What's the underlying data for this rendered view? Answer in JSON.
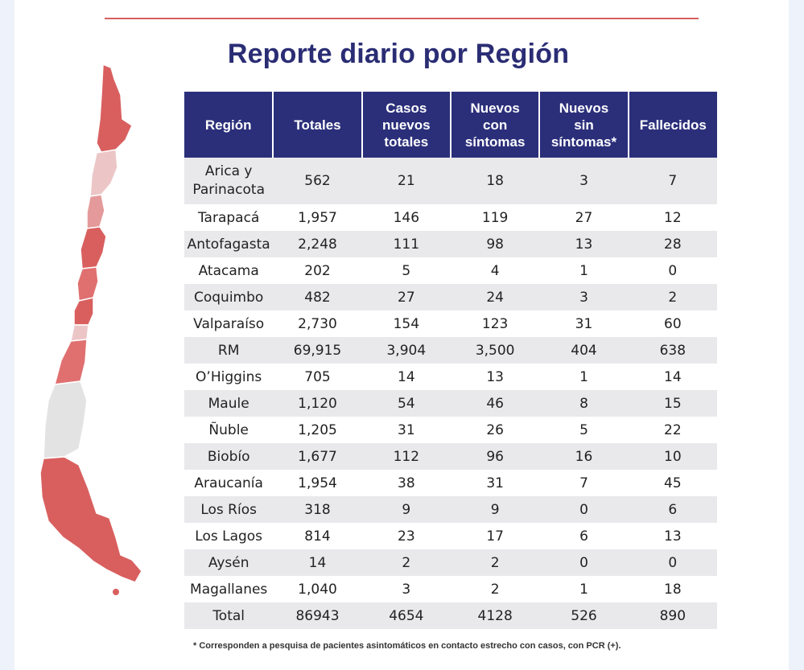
{
  "title": "Reporte diario por Región",
  "colors": {
    "header_bg": "#2b2f7a",
    "accent_red": "#d4605f",
    "title": "#2a2d74"
  },
  "table": {
    "headers": [
      "Región",
      "Totales",
      "Casos\nnuevos\ntotales",
      "Nuevos\ncon\nsíntomas",
      "Nuevos\nsin\nsíntomas*",
      "Fallecidos"
    ],
    "rows": [
      {
        "region": "Arica y\nParinacota",
        "totales": "562",
        "casos_nuevos": "21",
        "con_sintomas": "18",
        "sin_sintomas": "3",
        "fallecidos": "7"
      },
      {
        "region": "Tarapacá",
        "totales": "1,957",
        "casos_nuevos": "146",
        "con_sintomas": "119",
        "sin_sintomas": "27",
        "fallecidos": "12"
      },
      {
        "region": "Antofagasta",
        "totales": "2,248",
        "casos_nuevos": "111",
        "con_sintomas": "98",
        "sin_sintomas": "13",
        "fallecidos": "28"
      },
      {
        "region": "Atacama",
        "totales": "202",
        "casos_nuevos": "5",
        "con_sintomas": "4",
        "sin_sintomas": "1",
        "fallecidos": "0"
      },
      {
        "region": "Coquimbo",
        "totales": "482",
        "casos_nuevos": "27",
        "con_sintomas": "24",
        "sin_sintomas": "3",
        "fallecidos": "2"
      },
      {
        "region": "Valparaíso",
        "totales": "2,730",
        "casos_nuevos": "154",
        "con_sintomas": "123",
        "sin_sintomas": "31",
        "fallecidos": "60"
      },
      {
        "region": "RM",
        "totales": "69,915",
        "casos_nuevos": "3,904",
        "con_sintomas": "3,500",
        "sin_sintomas": "404",
        "fallecidos": "638"
      },
      {
        "region": "O’Higgins",
        "totales": "705",
        "casos_nuevos": "14",
        "con_sintomas": "13",
        "sin_sintomas": "1",
        "fallecidos": "14"
      },
      {
        "region": "Maule",
        "totales": "1,120",
        "casos_nuevos": "54",
        "con_sintomas": "46",
        "sin_sintomas": "8",
        "fallecidos": "15"
      },
      {
        "region": "Ñuble",
        "totales": "1,205",
        "casos_nuevos": "31",
        "con_sintomas": "26",
        "sin_sintomas": "5",
        "fallecidos": "22"
      },
      {
        "region": "Biobío",
        "totales": "1,677",
        "casos_nuevos": "112",
        "con_sintomas": "96",
        "sin_sintomas": "16",
        "fallecidos": "10"
      },
      {
        "region": "Araucanía",
        "totales": "1,954",
        "casos_nuevos": "38",
        "con_sintomas": "31",
        "sin_sintomas": "7",
        "fallecidos": "45"
      },
      {
        "region": "Los Ríos",
        "totales": "318",
        "casos_nuevos": "9",
        "con_sintomas": "9",
        "sin_sintomas": "0",
        "fallecidos": "6"
      },
      {
        "region": "Los Lagos",
        "totales": "814",
        "casos_nuevos": "23",
        "con_sintomas": "17",
        "sin_sintomas": "6",
        "fallecidos": "13"
      },
      {
        "region": "Aysén",
        "totales": "14",
        "casos_nuevos": "2",
        "con_sintomas": "2",
        "sin_sintomas": "0",
        "fallecidos": "0"
      },
      {
        "region": "Magallanes",
        "totales": "1,040",
        "casos_nuevos": "3",
        "con_sintomas": "2",
        "sin_sintomas": "1",
        "fallecidos": "18"
      }
    ],
    "total": {
      "region": "Total",
      "totales": "86943",
      "casos_nuevos": "4654",
      "con_sintomas": "4128",
      "sin_sintomas": "526",
      "fallecidos": "890"
    }
  },
  "footnote": "* Corresponden a pesquisa de pacientes asintomáticos en contacto estrecho con casos, con PCR (+)."
}
